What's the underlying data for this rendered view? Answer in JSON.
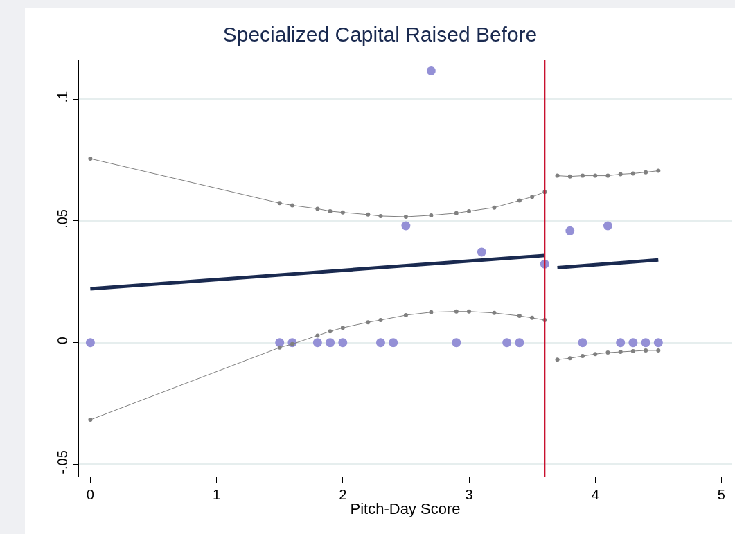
{
  "chart_data": {
    "type": "scatter",
    "title": "Specialized Capital Raised Before",
    "xlabel": "Pitch-Day Score",
    "xlim": [
      -0.09,
      5.08
    ],
    "xticks": [
      0,
      1,
      2,
      3,
      4,
      5
    ],
    "ylim": [
      -0.055,
      0.116
    ],
    "yticks": [
      {
        "value": -0.05,
        "label": "-.05"
      },
      0,
      {
        "value": 0.05,
        "label": ".05"
      },
      {
        "value": 0.1,
        "label": ".1"
      }
    ],
    "grid": "y",
    "legend": false,
    "series": [
      {
        "marker": "circle",
        "color": "#9490d6",
        "x": [
          0,
          1.5,
          1.6,
          1.8,
          1.9,
          2.0,
          2.3,
          2.4,
          2.9,
          3.3,
          3.4,
          3.9,
          4.2,
          4.3,
          4.4,
          4.5,
          2.5,
          2.7,
          3.1,
          3.6,
          3.8,
          4.1
        ],
        "values": [
          0,
          0,
          0,
          0,
          0,
          0,
          0,
          0,
          0,
          0,
          0,
          0,
          0,
          0,
          0,
          0,
          0.048,
          0.1116,
          0.0372,
          0.0323,
          0.0459,
          0.048
        ]
      },
      {
        "type": "line",
        "marker": "none",
        "line_style": "solid",
        "color": "#1a2a50",
        "x": [
          0,
          3.6
        ],
        "values": [
          0.0221,
          0.0358
        ]
      },
      {
        "type": "line",
        "marker": "none",
        "line_style": "solid",
        "color": "#1a2a50",
        "x": [
          3.7,
          4.5
        ],
        "values": [
          0.0308,
          0.034
        ]
      },
      {
        "type": "line",
        "marker": "circle",
        "line_style": "solid",
        "color": "#808080",
        "x": [
          0,
          1.5,
          1.6,
          1.8,
          1.9,
          2.0,
          2.2,
          2.3,
          2.5,
          2.7,
          2.9,
          3.0,
          3.2,
          3.4,
          3.5,
          3.6
        ],
        "values": [
          0.0756,
          0.0573,
          0.0564,
          0.055,
          0.054,
          0.0535,
          0.0526,
          0.052,
          0.0517,
          0.0523,
          0.0532,
          0.054,
          0.0555,
          0.0584,
          0.0599,
          0.0619
        ]
      },
      {
        "type": "line",
        "marker": "circle",
        "line_style": "solid",
        "color": "#808080",
        "x": [
          0,
          1.5,
          1.6,
          1.8,
          1.9,
          2.0,
          2.2,
          2.3,
          2.5,
          2.7,
          2.9,
          3.0,
          3.2,
          3.4,
          3.5,
          3.6
        ],
        "values": [
          -0.0317,
          -0.002,
          -0.0006,
          0.0029,
          0.0047,
          0.0061,
          0.0084,
          0.0093,
          0.0113,
          0.0125,
          0.0128,
          0.0128,
          0.0122,
          0.011,
          0.0102,
          0.0093
        ]
      },
      {
        "type": "line",
        "marker": "circle",
        "line_style": "solid",
        "color": "#808080",
        "x": [
          3.7,
          3.8,
          3.9,
          4.0,
          4.1,
          4.2,
          4.3,
          4.4,
          4.5
        ],
        "values": [
          0.0686,
          0.0683,
          0.0686,
          0.0686,
          0.0686,
          0.0692,
          0.0695,
          0.07,
          0.0706
        ]
      },
      {
        "type": "line",
        "marker": "circle",
        "line_style": "solid",
        "color": "#808080",
        "x": [
          3.7,
          3.8,
          3.9,
          4.0,
          4.1,
          4.2,
          4.3,
          4.4,
          4.5
        ],
        "values": [
          -0.007,
          -0.0064,
          -0.0055,
          -0.0047,
          -0.0041,
          -0.0038,
          -0.0035,
          -0.0032,
          -0.0032
        ]
      }
    ],
    "ref_lines": [
      {
        "axis": "x",
        "value": 3.6,
        "color": "#c8102e"
      }
    ]
  }
}
